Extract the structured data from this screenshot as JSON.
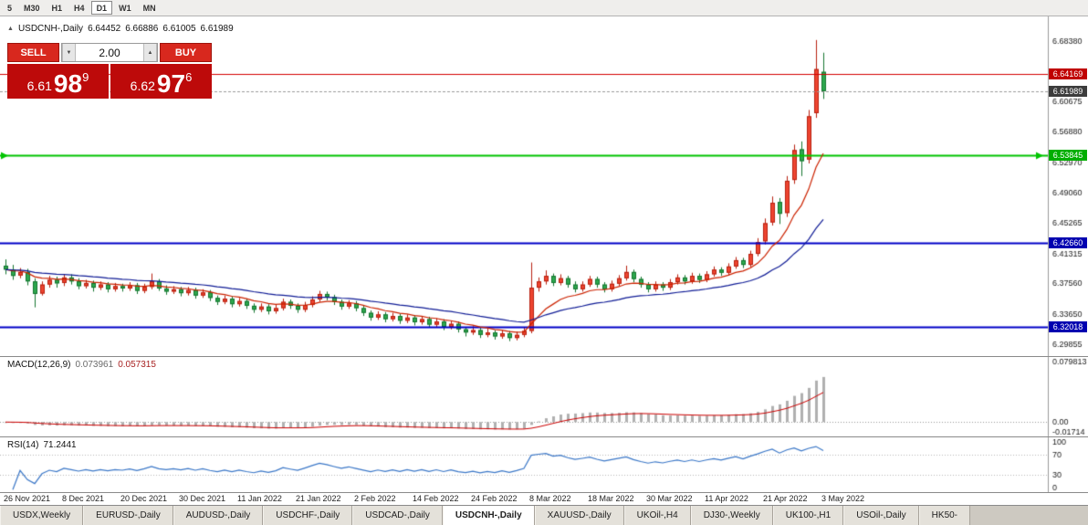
{
  "toolbar": {
    "timeframes": [
      {
        "label": "5",
        "active": false
      },
      {
        "label": "M30",
        "active": false
      },
      {
        "label": "H1",
        "active": false
      },
      {
        "label": "H4",
        "active": false
      },
      {
        "label": "D1",
        "active": true
      },
      {
        "label": "W1",
        "active": false
      },
      {
        "label": "MN",
        "active": false
      }
    ]
  },
  "chart": {
    "collapse_icon": "▲",
    "symbol_title": "USDCNH-,Daily",
    "open": "6.64452",
    "high": "6.66886",
    "low": "6.61005",
    "close": "6.61989"
  },
  "trade_panel": {
    "sell_label": "SELL",
    "buy_label": "BUY",
    "volume": "2.00",
    "volume_down_icon": "▼",
    "volume_up_icon": "▲",
    "bid": {
      "prefix": "6.61",
      "big": "98",
      "sup": "9"
    },
    "ask": {
      "prefix": "6.62",
      "big": "97",
      "sup": "6"
    }
  },
  "indicators": {
    "macd_label": "MACD(12,26,9)",
    "macd_value_main": "0.073961",
    "macd_value_signal": "0.057315",
    "macd_axis": {
      "max": "0.079813",
      "zero": "0.00",
      "min": "-0.01714"
    },
    "rsi_label": "RSI(14)",
    "rsi_value": "71.2441",
    "rsi_axis": [
      "100",
      "70",
      "30",
      "0"
    ]
  },
  "chart_data": {
    "type": "candlestick",
    "title": "USDCNH- Daily",
    "price_range": {
      "top": 6.715,
      "bottom": 6.283
    },
    "price_axis_labels": [
      "6.68380",
      "6.60675",
      "6.56880",
      "6.52970",
      "6.49060",
      "6.45265",
      "6.41315",
      "6.37560",
      "6.33650",
      "6.29855"
    ],
    "hlines": [
      {
        "price": 6.64169,
        "label": "6.64169",
        "line_color": "#d40000",
        "tag_color": "#c00000",
        "width": 1
      },
      {
        "price": 6.61989,
        "label": "6.61989",
        "line_color": "#9a9a9a",
        "tag_color": "#3c3c3c",
        "width": 1,
        "dash": true
      },
      {
        "price": 6.53845,
        "label": "6.53845",
        "line_color": "#00c400",
        "tag_color": "#00ae00",
        "width": 2,
        "arrows": true
      },
      {
        "price": 6.4266,
        "label": "6.42660",
        "line_color": "#0000c8",
        "tag_color": "#0000b0",
        "width": 2
      },
      {
        "price": 6.32018,
        "label": "6.32018",
        "line_color": "#0000c8",
        "tag_color": "#0000b0",
        "width": 2
      }
    ],
    "colors": {
      "bull": "#ee4430",
      "bear": "#2da84e",
      "bull_border": "#b7200f",
      "bear_border": "#15752f"
    },
    "ma": [
      {
        "period": 10,
        "color": "#cc2200"
      },
      {
        "period": 30,
        "color": "#101c96"
      }
    ],
    "dates": [
      "26 Nov 2021",
      "8 Dec 2021",
      "20 Dec 2021",
      "30 Dec 2021",
      "11 Jan 2022",
      "21 Jan 2022",
      "2 Feb 2022",
      "14 Feb 2022",
      "24 Feb 2022",
      "8 Mar 2022",
      "18 Mar 2022",
      "30 Mar 2022",
      "11 Apr 2022",
      "21 Apr 2022",
      "3 May 2022"
    ],
    "date_tick_step": 8,
    "macd": {
      "fast": 12,
      "slow": 26,
      "signal": 9,
      "range": {
        "max": 0.086,
        "min": -0.019
      },
      "hist_color": "#b0b0b0",
      "signal_color": "#cc0000"
    },
    "rsi": {
      "period": 14,
      "color": "#3c78c8",
      "levels": [
        70,
        30
      ],
      "range": {
        "max": 105,
        "min": -5
      }
    },
    "candles": [
      [
        6.398,
        6.406,
        6.387,
        6.393
      ],
      [
        6.393,
        6.399,
        6.38,
        6.385
      ],
      [
        6.3855,
        6.395,
        6.382,
        6.39
      ],
      [
        6.39,
        6.394,
        6.373,
        6.378
      ],
      [
        6.378,
        6.382,
        6.345,
        6.362
      ],
      [
        6.3625,
        6.378,
        6.36,
        6.374
      ],
      [
        6.374,
        6.385,
        6.37,
        6.38
      ],
      [
        6.38,
        6.384,
        6.37,
        6.3755
      ],
      [
        6.376,
        6.387,
        6.372,
        6.383
      ],
      [
        6.383,
        6.387,
        6.374,
        6.378
      ],
      [
        6.378,
        6.382,
        6.368,
        6.372
      ],
      [
        6.372,
        6.38,
        6.369,
        6.376
      ],
      [
        6.376,
        6.379,
        6.365,
        6.37
      ],
      [
        6.37,
        6.378,
        6.367,
        6.374
      ],
      [
        6.374,
        6.377,
        6.364,
        6.368
      ],
      [
        6.368,
        6.376,
        6.365,
        6.372
      ],
      [
        6.372,
        6.375,
        6.365,
        6.369
      ],
      [
        6.369,
        6.377,
        6.366,
        6.373
      ],
      [
        6.373,
        6.376,
        6.362,
        6.366
      ],
      [
        6.366,
        6.375,
        6.363,
        6.371
      ],
      [
        6.371,
        6.388,
        6.368,
        6.378
      ],
      [
        6.378,
        6.381,
        6.366,
        6.369
      ],
      [
        6.369,
        6.373,
        6.361,
        6.365
      ],
      [
        6.365,
        6.372,
        6.362,
        6.368
      ],
      [
        6.368,
        6.371,
        6.359,
        6.363
      ],
      [
        6.363,
        6.371,
        6.36,
        6.367
      ],
      [
        6.367,
        6.37,
        6.356,
        6.36
      ],
      [
        6.36,
        6.368,
        6.357,
        6.364
      ],
      [
        6.364,
        6.367,
        6.353,
        6.357
      ],
      [
        6.357,
        6.36,
        6.348,
        6.352
      ],
      [
        6.352,
        6.36,
        6.349,
        6.356
      ],
      [
        6.356,
        6.359,
        6.345,
        6.349
      ],
      [
        6.349,
        6.357,
        6.346,
        6.353
      ],
      [
        6.353,
        6.356,
        6.343,
        6.347
      ],
      [
        6.347,
        6.35,
        6.338,
        6.342
      ],
      [
        6.342,
        6.35,
        6.339,
        6.346
      ],
      [
        6.346,
        6.349,
        6.336,
        6.34
      ],
      [
        6.34,
        6.348,
        6.337,
        6.344
      ],
      [
        6.344,
        6.356,
        6.341,
        6.352
      ],
      [
        6.352,
        6.355,
        6.343,
        6.347
      ],
      [
        6.347,
        6.35,
        6.338,
        6.342
      ],
      [
        6.342,
        6.352,
        6.339,
        6.348
      ],
      [
        6.348,
        6.359,
        6.345,
        6.355
      ],
      [
        6.355,
        6.366,
        6.352,
        6.362
      ],
      [
        6.362,
        6.365,
        6.354,
        6.358
      ],
      [
        6.358,
        6.361,
        6.348,
        6.352
      ],
      [
        6.352,
        6.355,
        6.342,
        6.346
      ],
      [
        6.346,
        6.354,
        6.343,
        6.35
      ],
      [
        6.35,
        6.353,
        6.34,
        6.344
      ],
      [
        6.344,
        6.347,
        6.334,
        6.338
      ],
      [
        6.338,
        6.341,
        6.328,
        6.332
      ],
      [
        6.332,
        6.34,
        6.329,
        6.336
      ],
      [
        6.336,
        6.339,
        6.326,
        6.33
      ],
      [
        6.33,
        6.338,
        6.327,
        6.334
      ],
      [
        6.334,
        6.337,
        6.324,
        6.328
      ],
      [
        6.328,
        6.336,
        6.325,
        6.332
      ],
      [
        6.332,
        6.335,
        6.322,
        6.326
      ],
      [
        6.326,
        6.334,
        6.323,
        6.33
      ],
      [
        6.33,
        6.333,
        6.319,
        6.323
      ],
      [
        6.323,
        6.331,
        6.32,
        6.327
      ],
      [
        6.327,
        6.33,
        6.316,
        6.32
      ],
      [
        6.32,
        6.328,
        6.317,
        6.324
      ],
      [
        6.324,
        6.327,
        6.313,
        6.317
      ],
      [
        6.317,
        6.32,
        6.308,
        6.313
      ],
      [
        6.313,
        6.321,
        6.31,
        6.316
      ],
      [
        6.316,
        6.319,
        6.306,
        6.31
      ],
      [
        6.31,
        6.318,
        6.307,
        6.313
      ],
      [
        6.313,
        6.316,
        6.304,
        6.308
      ],
      [
        6.308,
        6.316,
        6.305,
        6.312
      ],
      [
        6.312,
        6.315,
        6.302,
        6.306
      ],
      [
        6.306,
        6.314,
        6.303,
        6.31
      ],
      [
        6.31,
        6.319,
        6.307,
        6.315
      ],
      [
        6.315,
        6.402,
        6.312,
        6.37
      ],
      [
        6.37,
        6.383,
        6.365,
        6.378
      ],
      [
        6.378,
        6.392,
        6.374,
        6.385
      ],
      [
        6.385,
        6.388,
        6.372,
        6.376
      ],
      [
        6.376,
        6.387,
        6.373,
        6.382
      ],
      [
        6.382,
        6.385,
        6.37,
        6.374
      ],
      [
        6.374,
        6.378,
        6.364,
        6.368
      ],
      [
        6.368,
        6.378,
        6.365,
        6.374
      ],
      [
        6.374,
        6.385,
        6.371,
        6.381
      ],
      [
        6.381,
        6.384,
        6.37,
        6.374
      ],
      [
        6.374,
        6.377,
        6.364,
        6.368
      ],
      [
        6.368,
        6.379,
        6.365,
        6.375
      ],
      [
        6.375,
        6.386,
        6.372,
        6.382
      ],
      [
        6.382,
        6.398,
        6.379,
        6.39
      ],
      [
        6.39,
        6.393,
        6.377,
        6.381
      ],
      [
        6.381,
        6.384,
        6.37,
        6.374
      ],
      [
        6.374,
        6.377,
        6.364,
        6.368
      ],
      [
        6.368,
        6.378,
        6.365,
        6.374
      ],
      [
        6.374,
        6.377,
        6.366,
        6.37
      ],
      [
        6.37,
        6.381,
        6.367,
        6.377
      ],
      [
        6.377,
        6.387,
        6.374,
        6.383
      ],
      [
        6.383,
        6.386,
        6.374,
        6.378
      ],
      [
        6.378,
        6.389,
        6.375,
        6.385
      ],
      [
        6.385,
        6.388,
        6.376,
        6.38
      ],
      [
        6.38,
        6.391,
        6.377,
        6.387
      ],
      [
        6.387,
        6.397,
        6.384,
        6.393
      ],
      [
        6.393,
        6.396,
        6.385,
        6.389
      ],
      [
        6.389,
        6.401,
        6.386,
        6.397
      ],
      [
        6.397,
        6.409,
        6.394,
        6.405
      ],
      [
        6.405,
        6.408,
        6.395,
        6.399
      ],
      [
        6.399,
        6.417,
        6.396,
        6.413
      ],
      [
        6.413,
        6.433,
        6.41,
        6.428
      ],
      [
        6.429,
        6.458,
        6.425,
        6.452
      ],
      [
        6.453,
        6.486,
        6.449,
        6.478
      ],
      [
        6.479,
        6.484,
        6.451,
        6.464
      ],
      [
        6.465,
        6.512,
        6.46,
        6.506
      ],
      [
        6.507,
        6.552,
        6.502,
        6.545
      ],
      [
        6.546,
        6.556,
        6.512,
        6.531
      ],
      [
        6.533,
        6.596,
        6.528,
        6.588
      ],
      [
        6.592,
        6.685,
        6.586,
        6.648
      ],
      [
        6.64452,
        6.66886,
        6.61005,
        6.61989
      ]
    ]
  },
  "tabs": [
    {
      "label": "USDX,Weekly"
    },
    {
      "label": "EURUSD-,Daily"
    },
    {
      "label": "AUDUSD-,Daily"
    },
    {
      "label": "USDCHF-,Daily"
    },
    {
      "label": "USDCAD-,Daily"
    },
    {
      "label": "USDCNH-,Daily",
      "active": true
    },
    {
      "label": "XAUUSD-,Daily"
    },
    {
      "label": "UKOil-,H4"
    },
    {
      "label": "DJ30-,Weekly"
    },
    {
      "label": "UK100-,H1"
    },
    {
      "label": "USOil-,Daily"
    },
    {
      "label": "HK50-"
    }
  ]
}
